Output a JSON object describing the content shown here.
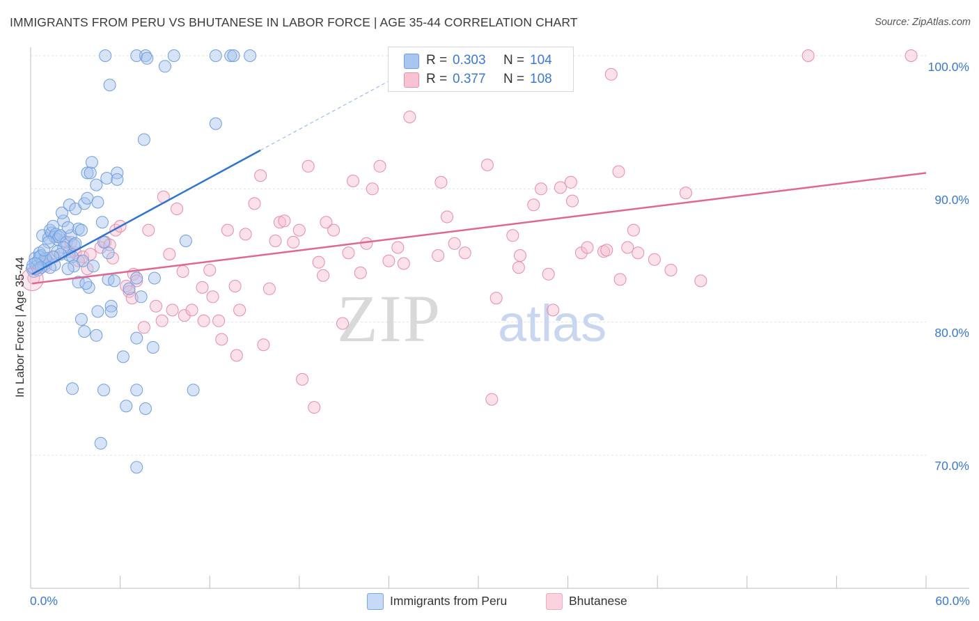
{
  "title": "IMMIGRANTS FROM PERU VS BHUTANESE IN LABOR FORCE | AGE 35-44 CORRELATION CHART",
  "source": "Source: ZipAtlas.com",
  "watermark": {
    "left": "ZIP",
    "right": "atlas"
  },
  "legend": {
    "r_label": "R =",
    "n_label": "N =",
    "rows": [
      {
        "r": "0.303",
        "n": "104",
        "color": "#a8c6ef",
        "edge": "#6f9ee0"
      },
      {
        "r": "0.377",
        "n": "108",
        "color": "#f7c3d3",
        "edge": "#e890ad"
      }
    ]
  },
  "bottom_legend": [
    "Immigrants from Peru",
    "Bhutanese"
  ],
  "chart_data": {
    "type": "scatter",
    "title": "IMMIGRANTS FROM PERU VS BHUTANESE IN LABOR FORCE | AGE 35-44 CORRELATION CHART",
    "xlabel": "",
    "ylabel": "In Labor Force | Age 35-44",
    "xlim": [
      0,
      60
    ],
    "ylim": [
      60,
      102
    ],
    "x_tick_labels": [
      "0.0%",
      "60.0%"
    ],
    "y_ticks": [
      70,
      80,
      90,
      100
    ],
    "y_tick_labels": [
      "70.0%",
      "80.0%",
      "90.0%",
      "100.0%"
    ],
    "grid": true,
    "legend_position": "top-center",
    "series": [
      {
        "name": "Immigrants from Peru",
        "color": "#7aa7e6",
        "trend": {
          "x": [
            0.1,
            15.4
          ],
          "y": [
            83.6,
            92.9
          ],
          "dashed_to": [
            25.0,
            98.7
          ],
          "color": "#2f74d0"
        },
        "points": [
          [
            0.1,
            84.0
          ],
          [
            0.2,
            83.8
          ],
          [
            0.3,
            84.4
          ],
          [
            0.3,
            84.8
          ],
          [
            0.4,
            84.2
          ],
          [
            0.5,
            84.6
          ],
          [
            0.6,
            85.2
          ],
          [
            0.7,
            85.0
          ],
          [
            0.8,
            84.5
          ],
          [
            0.9,
            84.3
          ],
          [
            1.0,
            84.7
          ],
          [
            1.1,
            84.6
          ],
          [
            0.8,
            86.5
          ],
          [
            1.2,
            86.3
          ],
          [
            1.3,
            86.9
          ],
          [
            1.4,
            86.7
          ],
          [
            1.5,
            87.2
          ],
          [
            1.6,
            86.4
          ],
          [
            1.7,
            86.6
          ],
          [
            1.8,
            86.2
          ],
          [
            1.9,
            86.4
          ],
          [
            2.0,
            86.5
          ],
          [
            2.2,
            87.6
          ],
          [
            2.1,
            88.2
          ],
          [
            2.4,
            86.0
          ],
          [
            2.7,
            86.5
          ],
          [
            2.9,
            85.8
          ],
          [
            3.0,
            85.9
          ],
          [
            3.2,
            87.0
          ],
          [
            3.4,
            86.9
          ],
          [
            2.6,
            85.0
          ],
          [
            2.8,
            84.9
          ],
          [
            3.5,
            84.6
          ],
          [
            2.9,
            84.2
          ],
          [
            1.6,
            84.3
          ],
          [
            2.5,
            84.0
          ],
          [
            4.2,
            84.2
          ],
          [
            5.2,
            85.2
          ],
          [
            4.8,
            87.5
          ],
          [
            4.9,
            86.0
          ],
          [
            2.6,
            88.8
          ],
          [
            3.0,
            88.5
          ],
          [
            3.6,
            88.9
          ],
          [
            3.8,
            89.3
          ],
          [
            4.5,
            89.0
          ],
          [
            3.8,
            91.2
          ],
          [
            4.0,
            91.2
          ],
          [
            4.1,
            92.0
          ],
          [
            5.1,
            90.8
          ],
          [
            4.4,
            90.3
          ],
          [
            5.8,
            91.2
          ],
          [
            5.8,
            90.7
          ],
          [
            3.2,
            83.0
          ],
          [
            3.9,
            82.6
          ],
          [
            3.7,
            82.9
          ],
          [
            5.2,
            83.2
          ],
          [
            5.6,
            83.1
          ],
          [
            6.6,
            82.5
          ],
          [
            7.1,
            83.3
          ],
          [
            8.3,
            83.3
          ],
          [
            3.4,
            80.2
          ],
          [
            3.6,
            79.3
          ],
          [
            4.4,
            79.0
          ],
          [
            4.5,
            80.8
          ],
          [
            5.4,
            81.2
          ],
          [
            5.4,
            80.8
          ],
          [
            6.2,
            77.4
          ],
          [
            7.1,
            78.8
          ],
          [
            8.2,
            78.1
          ],
          [
            7.4,
            81.9
          ],
          [
            2.8,
            75.0
          ],
          [
            4.9,
            74.9
          ],
          [
            7.1,
            74.9
          ],
          [
            10.9,
            74.9
          ],
          [
            6.4,
            73.7
          ],
          [
            7.7,
            73.5
          ],
          [
            4.7,
            70.9
          ],
          [
            7.1,
            69.1
          ],
          [
            10.4,
            86.1
          ],
          [
            5.0,
            100.0
          ],
          [
            7.1,
            100.0
          ],
          [
            7.7,
            100.0
          ],
          [
            7.8,
            99.8
          ],
          [
            9.0,
            99.2
          ],
          [
            9.6,
            100.0
          ],
          [
            12.4,
            100.0
          ],
          [
            13.4,
            100.0
          ],
          [
            13.6,
            100.0
          ],
          [
            14.7,
            100.0
          ],
          [
            5.3,
            97.8
          ],
          [
            12.4,
            94.9
          ],
          [
            7.6,
            93.7
          ],
          [
            1.0,
            84.8
          ],
          [
            1.3,
            84.1
          ],
          [
            0.6,
            84.9
          ],
          [
            2.2,
            85.6
          ],
          [
            0.5,
            83.9
          ],
          [
            1.8,
            85.3
          ],
          [
            2.0,
            85.1
          ],
          [
            1.2,
            86.0
          ],
          [
            0.9,
            85.4
          ],
          [
            2.5,
            87.1
          ],
          [
            1.5,
            84.9
          ],
          [
            0.7,
            84.1
          ]
        ]
      },
      {
        "name": "Bhutanese",
        "color": "#f2a6bf",
        "trend": {
          "x": [
            0.1,
            60.0
          ],
          "y": [
            82.9,
            91.2
          ],
          "color": "#e0678f"
        },
        "points": [
          [
            0.2,
            83.3
          ],
          [
            0.5,
            84.3
          ],
          [
            0.8,
            84.5
          ],
          [
            1.2,
            84.8
          ],
          [
            1.6,
            84.9
          ],
          [
            2.2,
            86.1
          ],
          [
            2.6,
            85.3
          ],
          [
            3.0,
            85.2
          ],
          [
            3.5,
            84.9
          ],
          [
            3.8,
            84.0
          ],
          [
            4.0,
            85.1
          ],
          [
            4.7,
            85.6
          ],
          [
            5.0,
            86.0
          ],
          [
            5.3,
            85.8
          ],
          [
            5.7,
            86.9
          ],
          [
            6.0,
            87.2
          ],
          [
            6.4,
            82.7
          ],
          [
            6.6,
            82.3
          ],
          [
            6.8,
            81.8
          ],
          [
            6.9,
            83.6
          ],
          [
            7.6,
            79.6
          ],
          [
            7.9,
            86.9
          ],
          [
            8.4,
            81.2
          ],
          [
            8.8,
            80.1
          ],
          [
            8.9,
            89.4
          ],
          [
            9.3,
            85.1
          ],
          [
            9.5,
            80.9
          ],
          [
            9.8,
            88.5
          ],
          [
            10.2,
            83.8
          ],
          [
            10.3,
            80.5
          ],
          [
            10.8,
            80.9
          ],
          [
            11.5,
            82.6
          ],
          [
            11.6,
            80.1
          ],
          [
            12.0,
            83.9
          ],
          [
            12.2,
            81.9
          ],
          [
            12.6,
            80.1
          ],
          [
            12.8,
            78.7
          ],
          [
            13.2,
            86.9
          ],
          [
            13.7,
            82.7
          ],
          [
            13.8,
            77.5
          ],
          [
            14.0,
            80.9
          ],
          [
            14.4,
            86.6
          ],
          [
            15.0,
            88.9
          ],
          [
            15.4,
            91.0
          ],
          [
            15.6,
            78.3
          ],
          [
            16.0,
            82.5
          ],
          [
            16.4,
            86.1
          ],
          [
            16.7,
            87.5
          ],
          [
            17.0,
            87.6
          ],
          [
            17.6,
            86.0
          ],
          [
            18.0,
            86.9
          ],
          [
            18.2,
            75.7
          ],
          [
            18.6,
            91.7
          ],
          [
            19.0,
            73.6
          ],
          [
            19.3,
            84.5
          ],
          [
            19.6,
            83.5
          ],
          [
            19.8,
            87.5
          ],
          [
            20.3,
            86.9
          ],
          [
            20.9,
            79.9
          ],
          [
            21.3,
            85.2
          ],
          [
            21.6,
            90.6
          ],
          [
            22.1,
            83.7
          ],
          [
            22.5,
            85.9
          ],
          [
            22.9,
            90.0
          ],
          [
            23.4,
            91.7
          ],
          [
            24.0,
            84.6
          ],
          [
            24.6,
            85.6
          ],
          [
            25.0,
            84.4
          ],
          [
            25.4,
            95.4
          ],
          [
            27.3,
            85.0
          ],
          [
            27.5,
            90.5
          ],
          [
            27.9,
            87.9
          ],
          [
            28.4,
            85.9
          ],
          [
            29.1,
            85.2
          ],
          [
            30.6,
            91.8
          ],
          [
            31.2,
            81.8
          ],
          [
            30.9,
            74.2
          ],
          [
            32.3,
            86.5
          ],
          [
            32.7,
            84.1
          ],
          [
            32.8,
            85.0
          ],
          [
            33.7,
            88.8
          ],
          [
            34.2,
            90.0
          ],
          [
            34.7,
            83.6
          ],
          [
            35.0,
            80.9
          ],
          [
            35.5,
            90.1
          ],
          [
            36.2,
            90.5
          ],
          [
            36.3,
            89.1
          ],
          [
            36.9,
            85.2
          ],
          [
            37.3,
            85.6
          ],
          [
            38.4,
            85.3
          ],
          [
            38.6,
            85.4
          ],
          [
            38.9,
            98.6
          ],
          [
            39.4,
            91.3
          ],
          [
            39.5,
            83.2
          ],
          [
            40.0,
            85.6
          ],
          [
            40.4,
            86.9
          ],
          [
            40.7,
            85.2
          ],
          [
            41.8,
            84.7
          ],
          [
            42.9,
            83.9
          ],
          [
            43.9,
            89.7
          ],
          [
            44.9,
            83.1
          ],
          [
            52.1,
            100.0
          ],
          [
            59.0,
            100.0
          ],
          [
            1.0,
            84.2
          ],
          [
            2.7,
            86.0
          ],
          [
            3.2,
            84.6
          ],
          [
            7.1,
            83.1
          ],
          [
            5.5,
            84.8
          ]
        ]
      }
    ]
  }
}
